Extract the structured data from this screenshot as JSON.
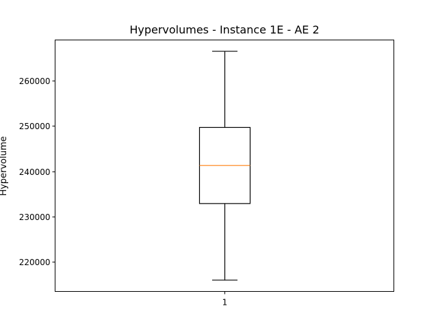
{
  "chart_data": {
    "type": "box",
    "title": "Hypervolumes - Instance 1E - AE 2",
    "xlabel": "",
    "ylabel": "Hypervolume",
    "categories": [
      "1"
    ],
    "ylim": [
      213500,
      269000
    ],
    "yticks": [
      220000,
      230000,
      240000,
      250000,
      260000
    ],
    "ytick_labels": [
      "220000",
      "230000",
      "240000",
      "250000",
      "260000"
    ],
    "boxes": [
      {
        "category": "1",
        "whisker_low": 216000,
        "q1": 232900,
        "median": 241300,
        "q3": 249700,
        "whisker_high": 266500
      }
    ],
    "grid": false,
    "colors": {
      "box": "#000000",
      "median": "#ff7f0e",
      "axes": "#000000"
    }
  }
}
